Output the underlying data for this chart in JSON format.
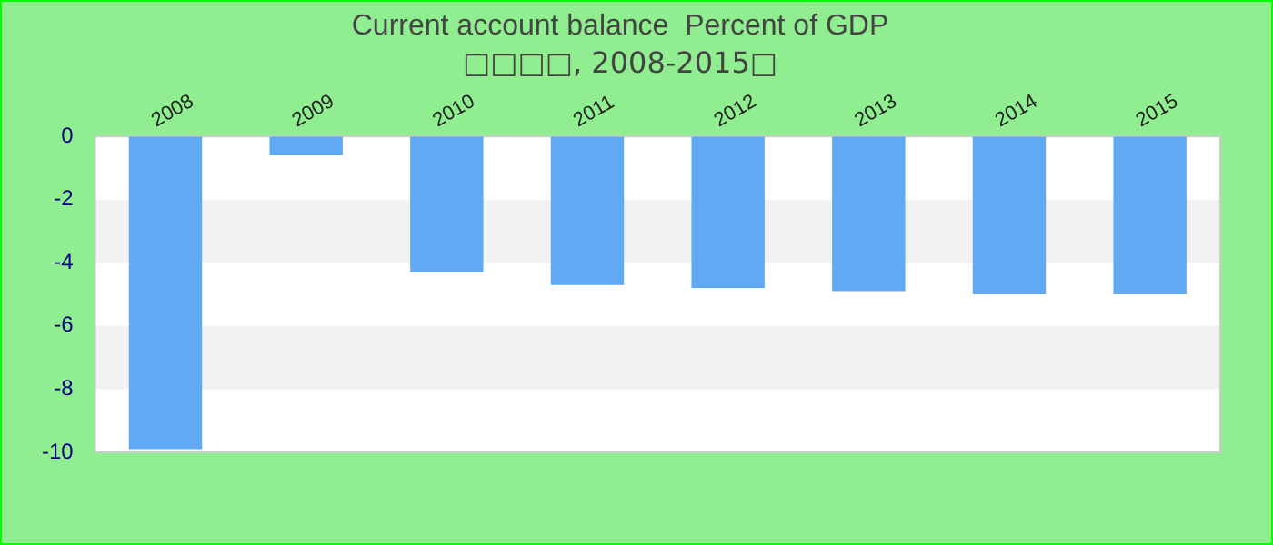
{
  "chart_data": {
    "type": "bar",
    "title": "Current account balance  Percent of GDP",
    "subtitle": "□□□□, 2008-2015□",
    "categories": [
      "2008",
      "2009",
      "2010",
      "2011",
      "2012",
      "2013",
      "2014",
      "2015"
    ],
    "values": [
      -9.9,
      -0.6,
      -4.3,
      -4.7,
      -4.8,
      -4.9,
      -5.0,
      -5.0
    ],
    "color": "#61a9f3",
    "ylim": [
      -10,
      0
    ],
    "yticks": [
      -10,
      -8,
      -6,
      -4,
      -2,
      0
    ],
    "grid": false,
    "legend": false,
    "bands": [
      {
        "axis": "y",
        "from": -4,
        "to": -2,
        "color": "#f2f2f2"
      },
      {
        "axis": "y",
        "from": -8,
        "to": -6,
        "color": "#f2f2f2"
      }
    ]
  }
}
